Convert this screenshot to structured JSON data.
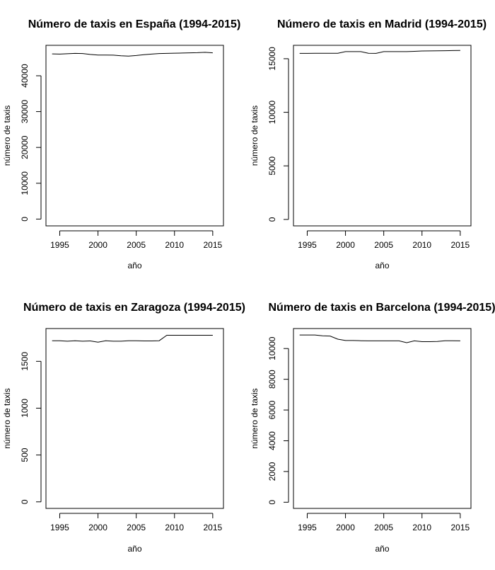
{
  "chart_data": [
    {
      "type": "line",
      "title": "Número de taxis en España (1994-2015)",
      "xlabel": "año",
      "ylabel": "número de taxis",
      "xlim": [
        1993.2,
        2016.4
      ],
      "ylim": [
        -1900,
        48500
      ],
      "xticks": [
        1995,
        2000,
        2005,
        2010,
        2015
      ],
      "yticks": [
        0,
        10000,
        20000,
        30000,
        40000
      ],
      "x": [
        1994,
        1995,
        1996,
        1997,
        1998,
        1999,
        2000,
        2001,
        2002,
        2003,
        2004,
        2005,
        2006,
        2007,
        2008,
        2009,
        2010,
        2011,
        2012,
        2013,
        2014,
        2015
      ],
      "series": [
        {
          "values": [
            46100,
            46050,
            46150,
            46250,
            46200,
            45950,
            45800,
            45800,
            45750,
            45600,
            45500,
            45650,
            45900,
            46050,
            46200,
            46250,
            46300,
            46350,
            46400,
            46450,
            46550,
            46400
          ]
        }
      ]
    },
    {
      "type": "line",
      "title": "Número de taxis en Madrid (1994-2015)",
      "xlabel": "año",
      "ylabel": "número de taxis",
      "xlim": [
        1993.2,
        2016.4
      ],
      "ylim": [
        -600,
        16250
      ],
      "xticks": [
        1995,
        2000,
        2005,
        2010,
        2015
      ],
      "yticks": [
        0,
        5000,
        10000,
        15000
      ],
      "x": [
        1994,
        1995,
        1996,
        1997,
        1998,
        1999,
        2000,
        2001,
        2002,
        2003,
        2004,
        2005,
        2006,
        2007,
        2008,
        2009,
        2010,
        2011,
        2012,
        2013,
        2014,
        2015
      ],
      "series": [
        {
          "values": [
            15500,
            15500,
            15510,
            15510,
            15510,
            15510,
            15660,
            15660,
            15660,
            15510,
            15500,
            15660,
            15660,
            15660,
            15660,
            15690,
            15720,
            15730,
            15740,
            15750,
            15760,
            15770
          ]
        }
      ]
    },
    {
      "type": "line",
      "title": "Número de taxis en Zaragoza (1994-2015)",
      "xlabel": "año",
      "ylabel": "número de taxis",
      "xlim": [
        1993.2,
        2016.4
      ],
      "ylim": [
        -70,
        1850
      ],
      "xticks": [
        1995,
        2000,
        2005,
        2010,
        2015
      ],
      "yticks": [
        0,
        500,
        1000,
        1500
      ],
      "x": [
        1994,
        1995,
        1996,
        1997,
        1998,
        1999,
        2000,
        2001,
        2002,
        2003,
        2004,
        2005,
        2006,
        2007,
        2008,
        2009,
        2010,
        2011,
        2012,
        2013,
        2014,
        2015
      ],
      "series": [
        {
          "values": [
            1720,
            1720,
            1715,
            1720,
            1715,
            1718,
            1705,
            1720,
            1715,
            1715,
            1720,
            1720,
            1718,
            1718,
            1720,
            1778,
            1778,
            1778,
            1778,
            1778,
            1778,
            1778
          ]
        }
      ]
    },
    {
      "type": "line",
      "title": "Número de taxis en Barcelona (1994-2015)",
      "xlabel": "año",
      "ylabel": "número de taxis",
      "xlim": [
        1993.2,
        2016.4
      ],
      "ylim": [
        -400,
        11300
      ],
      "xticks": [
        1995,
        2000,
        2005,
        2010,
        2015
      ],
      "yticks": [
        0,
        2000,
        4000,
        6000,
        8000,
        10000
      ],
      "x": [
        1994,
        1995,
        1996,
        1997,
        1998,
        1999,
        2000,
        2001,
        2002,
        2003,
        2004,
        2005,
        2006,
        2007,
        2008,
        2009,
        2010,
        2011,
        2012,
        2013,
        2014,
        2015
      ],
      "series": [
        {
          "values": [
            10880,
            10880,
            10880,
            10830,
            10810,
            10610,
            10520,
            10520,
            10510,
            10500,
            10500,
            10500,
            10500,
            10500,
            10380,
            10500,
            10450,
            10450,
            10460,
            10510,
            10510,
            10500
          ]
        }
      ]
    }
  ]
}
